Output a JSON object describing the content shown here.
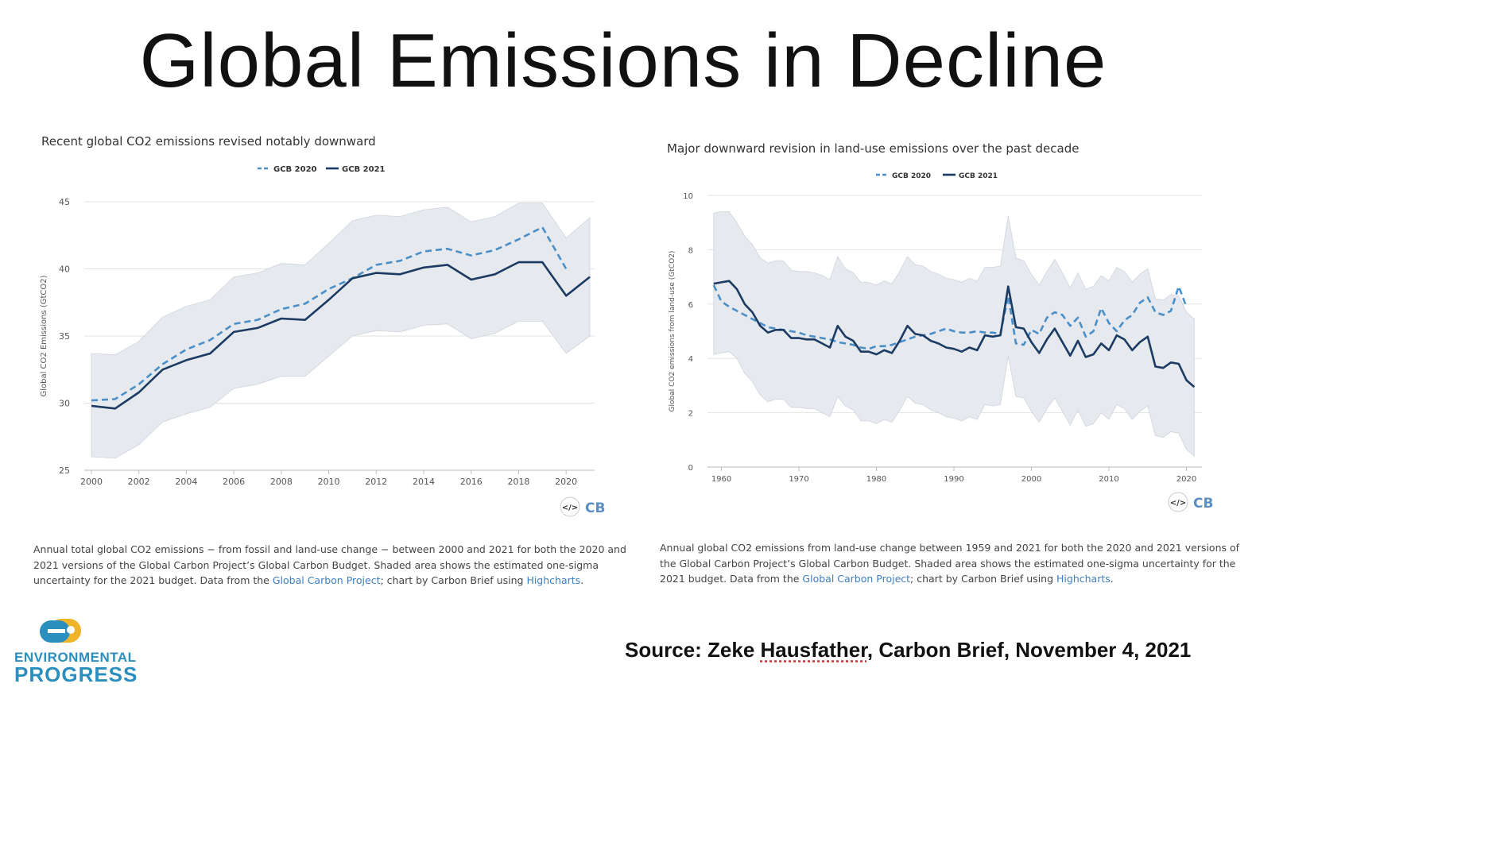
{
  "slide": {
    "title": "Global Emissions in Decline",
    "source_prefix": "Source: Zeke ",
    "source_underlined": "Hausfather",
    "source_suffix": ", Carbon Brief, November 4, 2021",
    "logo_line1": "ENVIRONMENTAL",
    "logo_line2": "PROGRESS",
    "colors": {
      "gcb2020": "#4a8fc7",
      "gcb2021": "#1b3b63",
      "band": "#e6e9ee",
      "link": "#3d7fc0"
    }
  },
  "chart_data": [
    {
      "type": "line",
      "title": "Recent global CO2 emissions revised notably downward",
      "ylabel": "Global CO2 Emissions (GtCO2)",
      "xlabel": "",
      "xlim": [
        1999.7,
        2021.2
      ],
      "ylim": [
        25,
        45
      ],
      "xticks": [
        "2000",
        "2002",
        "2004",
        "2006",
        "2008",
        "2010",
        "2012",
        "2014",
        "2016",
        "2018",
        "2020"
      ],
      "yticks": [
        "25",
        "30",
        "35",
        "40",
        "45"
      ],
      "grid": true,
      "legend": "top-center",
      "embed_icon": "code-icon",
      "brand": "CB",
      "series": [
        {
          "name": "GCB 2020",
          "style": "dashed",
          "color": "#4a8fc7",
          "x": [
            2000,
            2001,
            2002,
            2003,
            2004,
            2005,
            2006,
            2007,
            2008,
            2009,
            2010,
            2011,
            2012,
            2013,
            2014,
            2015,
            2016,
            2017,
            2018,
            2019,
            2020
          ],
          "values": [
            30.2,
            30.3,
            31.4,
            32.9,
            34.0,
            34.7,
            35.9,
            36.2,
            37.0,
            37.4,
            38.5,
            39.3,
            40.3,
            40.6,
            41.3,
            41.5,
            41.0,
            41.4,
            42.2,
            43.1,
            40.0
          ]
        },
        {
          "name": "GCB 2021",
          "style": "solid",
          "color": "#1b3b63",
          "x": [
            2000,
            2001,
            2002,
            2003,
            2004,
            2005,
            2006,
            2007,
            2008,
            2009,
            2010,
            2011,
            2012,
            2013,
            2014,
            2015,
            2016,
            2017,
            2018,
            2019,
            2020,
            2021
          ],
          "values": [
            29.8,
            29.6,
            30.8,
            32.5,
            33.2,
            33.7,
            35.3,
            35.6,
            36.3,
            36.2,
            37.7,
            39.3,
            39.7,
            39.6,
            40.1,
            40.3,
            39.2,
            39.6,
            40.5,
            40.5,
            38.0,
            39.4
          ]
        }
      ],
      "band": {
        "x": [
          2000,
          2001,
          2002,
          2003,
          2004,
          2005,
          2006,
          2007,
          2008,
          2009,
          2010,
          2011,
          2012,
          2013,
          2014,
          2015,
          2016,
          2017,
          2018,
          2019,
          2020,
          2021
        ],
        "upper": [
          33.7,
          33.6,
          34.6,
          36.4,
          37.2,
          37.7,
          39.4,
          39.7,
          40.4,
          40.3,
          41.9,
          43.6,
          44.0,
          43.9,
          44.4,
          44.6,
          43.5,
          43.9,
          44.9,
          44.9,
          42.3,
          43.8
        ],
        "lower": [
          26.0,
          25.9,
          26.9,
          28.6,
          29.2,
          29.7,
          31.1,
          31.4,
          32.0,
          32.0,
          33.5,
          35.0,
          35.4,
          35.3,
          35.8,
          35.9,
          34.8,
          35.2,
          36.1,
          36.1,
          33.7,
          35.0
        ]
      },
      "caption": {
        "text": "Annual total global CO2 emissions − from fossil and land-use change − between 2000 and 2021 for both the 2020 and 2021 versions of the Global Carbon Project’s Global Carbon Budget. Shaded area shows the estimated one-sigma uncertainty for the 2021 budget. Data from the ",
        "link1": "Global Carbon Project",
        "mid": "; chart by Carbon Brief using ",
        "link2": "Highcharts",
        "end": "."
      }
    },
    {
      "type": "line",
      "title": "Major downward revision in land-use emissions over the past decade",
      "ylabel": "Global CO2 emissions from land-use (GtCO2)",
      "xlabel": "",
      "xlim": [
        1958.2,
        2022
      ],
      "ylim": [
        0,
        10
      ],
      "xticks": [
        "1960",
        "1970",
        "1980",
        "1990",
        "2000",
        "2010",
        "2020"
      ],
      "yticks": [
        "0",
        "2",
        "4",
        "6",
        "8",
        "10"
      ],
      "grid": true,
      "legend": "top-center",
      "embed_icon": "code-icon",
      "brand": "CB",
      "series": [
        {
          "name": "GCB 2020",
          "style": "dashed",
          "color": "#4a8fc7",
          "x": [
            1959,
            1960,
            1961,
            1962,
            1963,
            1964,
            1965,
            1966,
            1967,
            1968,
            1969,
            1970,
            1971,
            1972,
            1973,
            1974,
            1975,
            1976,
            1977,
            1978,
            1979,
            1980,
            1981,
            1982,
            1983,
            1984,
            1985,
            1986,
            1987,
            1988,
            1989,
            1990,
            1991,
            1992,
            1993,
            1994,
            1995,
            1996,
            1997,
            1998,
            1999,
            2000,
            2001,
            2002,
            2003,
            2004,
            2005,
            2006,
            2007,
            2008,
            2009,
            2010,
            2011,
            2012,
            2013,
            2014,
            2015,
            2016,
            2017,
            2018,
            2019,
            2020
          ],
          "values": [
            6.7,
            6.1,
            5.9,
            5.75,
            5.6,
            5.45,
            5.3,
            5.15,
            5.1,
            5.05,
            5.0,
            4.95,
            4.85,
            4.8,
            4.75,
            4.7,
            4.6,
            4.55,
            4.5,
            4.4,
            4.35,
            4.45,
            4.45,
            4.5,
            4.6,
            4.7,
            4.8,
            4.85,
            4.9,
            5.0,
            5.1,
            5.0,
            4.95,
            4.95,
            5.0,
            4.95,
            4.95,
            4.9,
            6.3,
            4.55,
            4.5,
            5.05,
            4.9,
            5.5,
            5.7,
            5.6,
            5.2,
            5.5,
            4.8,
            5.0,
            5.85,
            5.3,
            5.0,
            5.4,
            5.6,
            6.05,
            6.25,
            5.7,
            5.6,
            5.75,
            6.65,
            5.9
          ]
        },
        {
          "name": "GCB 2021",
          "style": "solid",
          "color": "#1b3b63",
          "x": [
            1959,
            1960,
            1961,
            1962,
            1963,
            1964,
            1965,
            1966,
            1967,
            1968,
            1969,
            1970,
            1971,
            1972,
            1973,
            1974,
            1975,
            1976,
            1977,
            1978,
            1979,
            1980,
            1981,
            1982,
            1983,
            1984,
            1985,
            1986,
            1987,
            1988,
            1989,
            1990,
            1991,
            1992,
            1993,
            1994,
            1995,
            1996,
            1997,
            1998,
            1999,
            2000,
            2001,
            2002,
            2003,
            2004,
            2005,
            2006,
            2007,
            2008,
            2009,
            2010,
            2011,
            2012,
            2013,
            2014,
            2015,
            2016,
            2017,
            2018,
            2019,
            2020,
            2021
          ],
          "values": [
            6.75,
            6.8,
            6.85,
            6.55,
            6.0,
            5.7,
            5.2,
            4.95,
            5.05,
            5.05,
            4.75,
            4.75,
            4.7,
            4.7,
            4.55,
            4.4,
            5.2,
            4.8,
            4.65,
            4.25,
            4.25,
            4.15,
            4.3,
            4.2,
            4.65,
            5.2,
            4.9,
            4.85,
            4.65,
            4.55,
            4.4,
            4.35,
            4.25,
            4.4,
            4.3,
            4.85,
            4.8,
            4.85,
            6.65,
            5.15,
            5.1,
            4.6,
            4.2,
            4.7,
            5.1,
            4.6,
            4.1,
            4.65,
            4.05,
            4.15,
            4.55,
            4.3,
            4.85,
            4.7,
            4.3,
            4.6,
            4.8,
            3.7,
            3.65,
            3.85,
            3.8,
            3.2,
            2.95
          ]
        }
      ],
      "band": {
        "x": [
          1959,
          1960,
          1961,
          1962,
          1963,
          1964,
          1965,
          1966,
          1967,
          1968,
          1969,
          1970,
          1971,
          1972,
          1973,
          1974,
          1975,
          1976,
          1977,
          1978,
          1979,
          1980,
          1981,
          1982,
          1983,
          1984,
          1985,
          1986,
          1987,
          1988,
          1989,
          1990,
          1991,
          1992,
          1993,
          1994,
          1995,
          1996,
          1997,
          1998,
          1999,
          2000,
          2001,
          2002,
          2003,
          2004,
          2005,
          2006,
          2007,
          2008,
          2009,
          2010,
          2011,
          2012,
          2013,
          2014,
          2015,
          2016,
          2017,
          2018,
          2019,
          2020,
          2021
        ],
        "upper": [
          9.35,
          9.4,
          9.4,
          9.0,
          8.5,
          8.2,
          7.7,
          7.5,
          7.6,
          7.6,
          7.25,
          7.2,
          7.2,
          7.15,
          7.05,
          6.9,
          7.75,
          7.3,
          7.15,
          6.8,
          6.8,
          6.7,
          6.85,
          6.75,
          7.2,
          7.75,
          7.45,
          7.4,
          7.2,
          7.1,
          6.95,
          6.9,
          6.8,
          6.95,
          6.85,
          7.35,
          7.35,
          7.4,
          9.25,
          7.7,
          7.6,
          7.1,
          6.7,
          7.2,
          7.65,
          7.15,
          6.6,
          7.15,
          6.55,
          6.65,
          7.05,
          6.85,
          7.35,
          7.2,
          6.8,
          7.1,
          7.3,
          6.2,
          6.15,
          6.35,
          6.3,
          5.7,
          5.45
        ],
        "lower": [
          4.15,
          4.2,
          4.25,
          4.0,
          3.45,
          3.15,
          2.65,
          2.4,
          2.5,
          2.5,
          2.2,
          2.2,
          2.15,
          2.15,
          2.0,
          1.85,
          2.6,
          2.25,
          2.1,
          1.7,
          1.7,
          1.6,
          1.75,
          1.65,
          2.1,
          2.6,
          2.35,
          2.3,
          2.1,
          2.0,
          1.85,
          1.8,
          1.7,
          1.85,
          1.75,
          2.3,
          2.25,
          2.3,
          4.1,
          2.6,
          2.55,
          2.05,
          1.65,
          2.15,
          2.55,
          2.05,
          1.55,
          2.1,
          1.5,
          1.6,
          2.0,
          1.75,
          2.3,
          2.15,
          1.75,
          2.05,
          2.25,
          1.15,
          1.1,
          1.3,
          1.25,
          0.65,
          0.4
        ]
      },
      "caption": {
        "text": "Annual global CO2 emissions from land-use change between 1959 and 2021 for both the 2020 and 2021 versions of the Global Carbon Project’s Global Carbon Budget. Shaded area shows the estimated one-sigma uncertainty for the 2021 budget. Data from the ",
        "link1": "Global Carbon Project",
        "mid": "; chart by Carbon Brief using ",
        "link2": "Highcharts",
        "end": "."
      }
    }
  ]
}
